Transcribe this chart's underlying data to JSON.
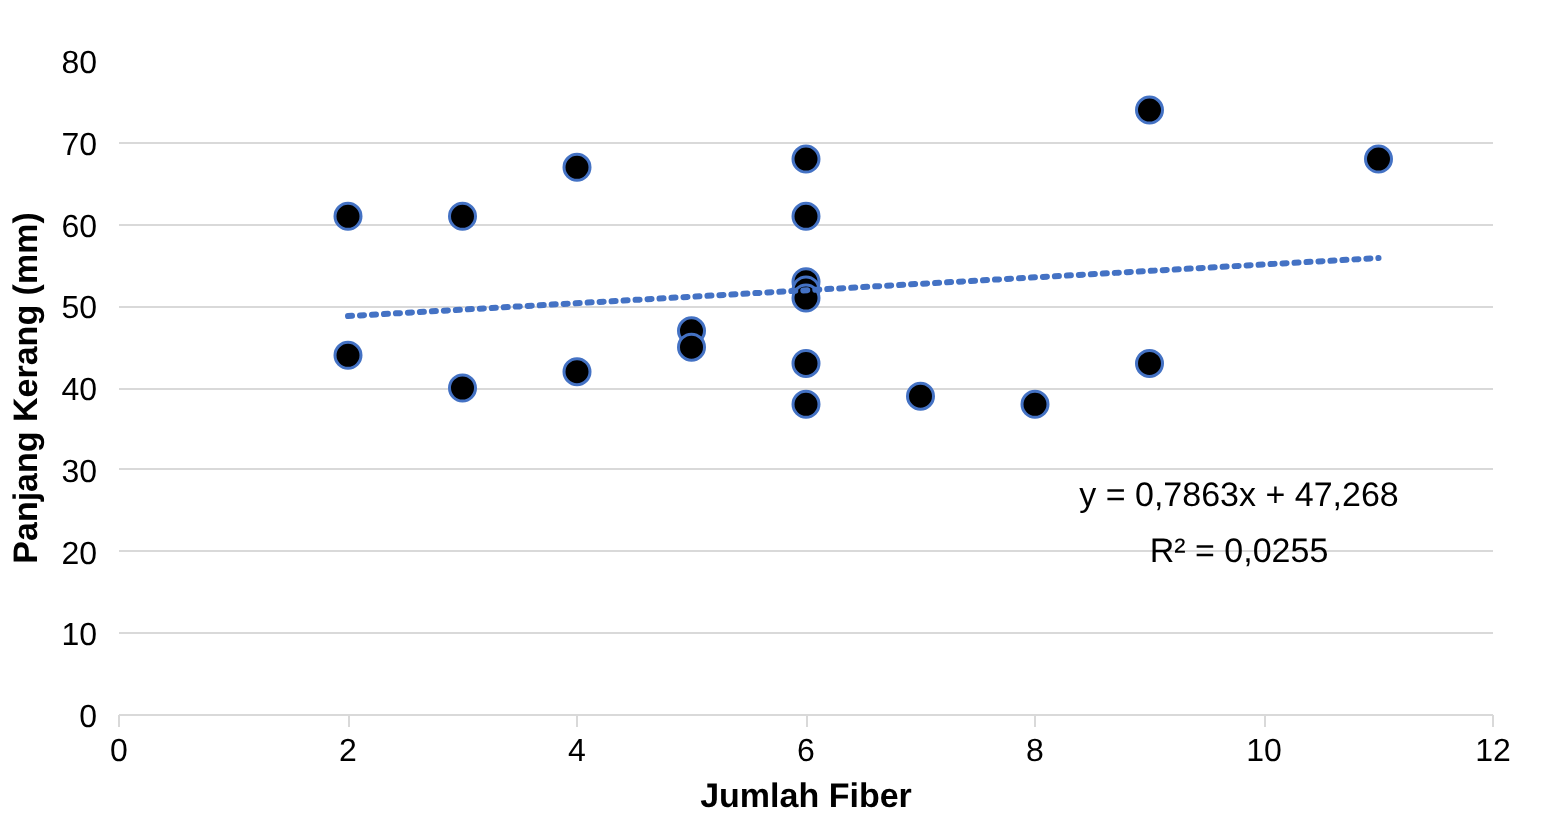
{
  "chart_data": {
    "type": "scatter",
    "xlabel": "Jumlah Fiber",
    "ylabel": "Panjang Kerang (mm)",
    "xlim": [
      0,
      12
    ],
    "xticks": [
      0,
      2,
      4,
      6,
      8,
      10,
      12
    ],
    "ylim": [
      0,
      80
    ],
    "yticks": [
      0,
      10,
      20,
      30,
      40,
      50,
      60,
      70,
      80
    ],
    "grid": "y",
    "series": [
      {
        "color": "#000000",
        "marker": "circle",
        "x": [
          2,
          2,
          3,
          3,
          4,
          4,
          5,
          5,
          6,
          6,
          6,
          6,
          6,
          6,
          6,
          7,
          8,
          9,
          9,
          11
        ],
        "values": [
          61,
          44,
          61,
          40,
          67,
          42,
          47,
          45,
          68,
          61,
          53,
          52,
          51,
          43,
          38,
          39,
          38,
          74,
          43,
          68
        ]
      },
      {
        "type": "line",
        "color": "#4472c4",
        "line_style": "dotted",
        "x": [
          2,
          11
        ],
        "values": [
          48.8,
          55.9
        ]
      }
    ],
    "annotations": [
      "y = 0,7863x + 47,268",
      "R² = 0,0255"
    ]
  }
}
